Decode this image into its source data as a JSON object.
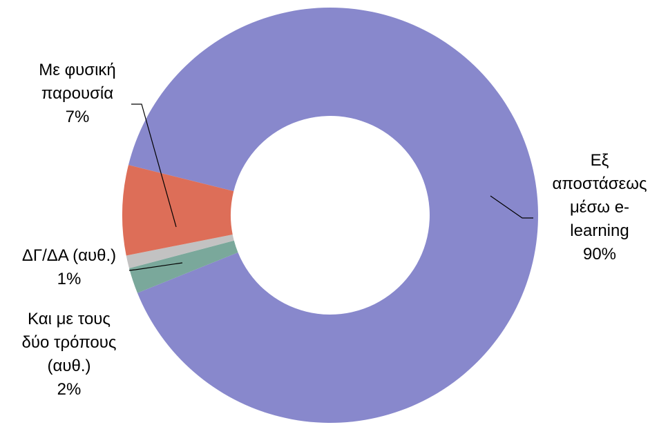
{
  "chart_data": {
    "type": "pie",
    "variant": "doughnut",
    "start_angle_deg": 284,
    "direction": "clockwise",
    "slices": [
      {
        "name": "Εξ αποστάσεως μέσω e-learning",
        "value": 90,
        "label_lines": [
          "Εξ",
          "αποστάσεως",
          "μέσω e-",
          "learning",
          "90%"
        ],
        "color": "#8888CC"
      },
      {
        "name": "Και με τους δύο τρόπους (αυθ.)",
        "value": 2,
        "label_lines": [
          "Και με τους",
          "δύο τρόπους",
          "(αυθ.)",
          "2%"
        ],
        "color": "#7AA89B"
      },
      {
        "name": "ΔΓ/ΔΑ (αυθ.)",
        "value": 1,
        "label_lines": [
          "ΔΓ/ΔΑ (αυθ.)",
          "1%"
        ],
        "color": "#C2C2C2"
      },
      {
        "name": "Με φυσική παρουσία",
        "value": 7,
        "label_lines": [
          "Με φυσική",
          "παρουσία",
          "7%"
        ],
        "color": "#DD6E58"
      }
    ]
  }
}
